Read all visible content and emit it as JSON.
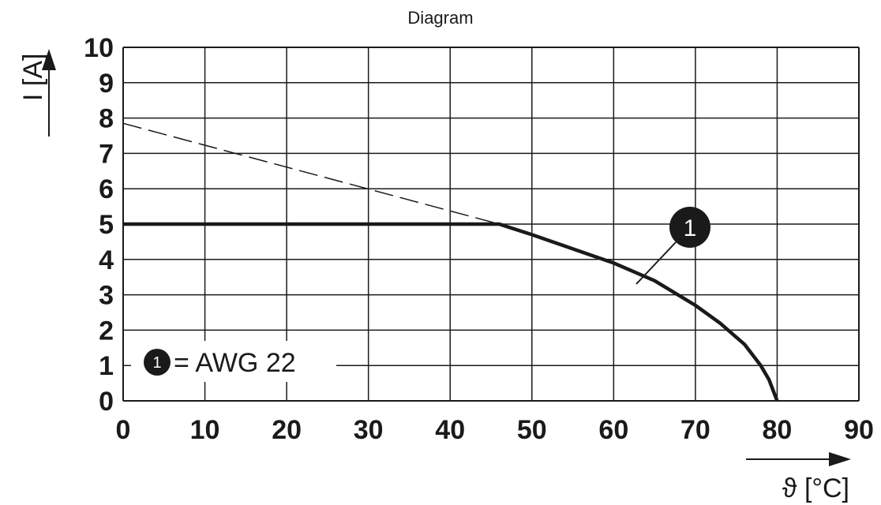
{
  "chart_data": {
    "type": "line",
    "title": "Diagram",
    "xlabel": "ϑ [°C]",
    "ylabel": "I [A]",
    "xlim": [
      0,
      90
    ],
    "ylim": [
      0,
      10
    ],
    "xticks": [
      "0",
      "10",
      "20",
      "30",
      "40",
      "50",
      "60",
      "70",
      "80",
      "90"
    ],
    "yticks": [
      "0",
      "1",
      "2",
      "3",
      "4",
      "5",
      "6",
      "7",
      "8",
      "9",
      "10"
    ],
    "grid": true,
    "series": [
      {
        "marker": "1",
        "style": "solid-bold",
        "x": [
          0,
          46,
          50,
          55,
          60,
          65,
          70,
          73,
          76,
          78,
          79,
          80
        ],
        "y": [
          5,
          5,
          4.7,
          4.3,
          3.9,
          3.4,
          2.7,
          2.2,
          1.6,
          1.0,
          0.6,
          0
        ]
      },
      {
        "style": "dashed",
        "x": [
          0,
          46
        ],
        "y": [
          7.85,
          5
        ]
      }
    ],
    "legend": {
      "marker": "1",
      "text": "= AWG 22",
      "placement": "bottom-left"
    },
    "colors": {
      "line": "#1a1a1a",
      "grid": "#1a1a1a",
      "marker_fill": "#1a1a1a"
    }
  }
}
